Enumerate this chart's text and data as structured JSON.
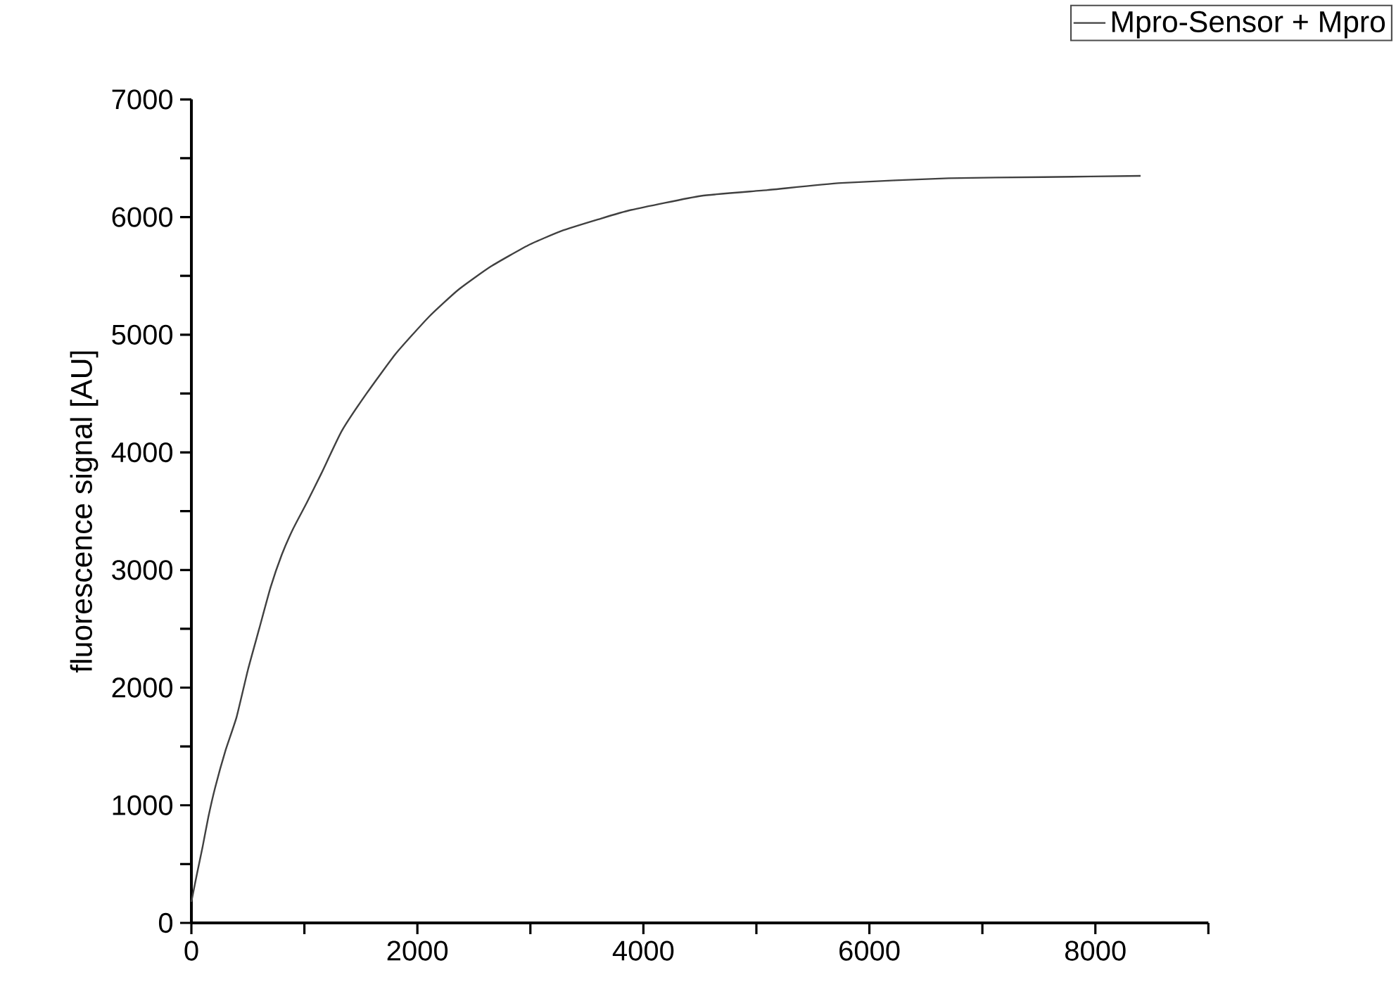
{
  "chart_data": {
    "type": "line",
    "ylabel": "fluorescence signal [AU]",
    "xlim": [
      0,
      9000
    ],
    "ylim": [
      0,
      7000
    ],
    "xticks": [
      0,
      {
        "value": 1000,
        "label": null
      },
      2000,
      {
        "value": 3000,
        "label": null
      },
      4000,
      {
        "value": 5000,
        "label": null
      },
      6000,
      {
        "value": 7000,
        "label": null
      },
      8000,
      {
        "value": 9000,
        "label": null
      }
    ],
    "yticks": [
      0,
      {
        "value": 500,
        "label": null
      },
      1000,
      {
        "value": 1500,
        "label": null
      },
      2000,
      {
        "value": 2500,
        "label": null
      },
      3000,
      {
        "value": 3500,
        "label": null
      },
      4000,
      {
        "value": 4500,
        "label": null
      },
      5000,
      {
        "value": 5500,
        "label": null
      },
      6000,
      {
        "value": 6500,
        "label": null
      },
      7000
    ],
    "legend": "top right",
    "grid": false,
    "marker": "none",
    "line_style": "solid",
    "series": [
      {
        "name": "Mpro-Sensor + Mpro",
        "color": "#404040",
        "x": [
          0,
          50,
          100,
          150,
          210,
          300,
          400,
          500,
          600,
          700,
          800,
          900,
          1020,
          1150,
          1330,
          1550,
          1810,
          2100,
          2360,
          2650,
          2980,
          3270,
          3600,
          3890,
          4510,
          5100,
          5750,
          6700,
          7540,
          8400
        ],
        "values": [
          180,
          420,
          650,
          900,
          1150,
          1460,
          1750,
          2150,
          2500,
          2850,
          3130,
          3350,
          3570,
          3820,
          4180,
          4500,
          4840,
          5150,
          5380,
          5580,
          5760,
          5880,
          5980,
          6060,
          6180,
          6230,
          6290,
          6330,
          6340,
          6350
        ]
      }
    ]
  }
}
